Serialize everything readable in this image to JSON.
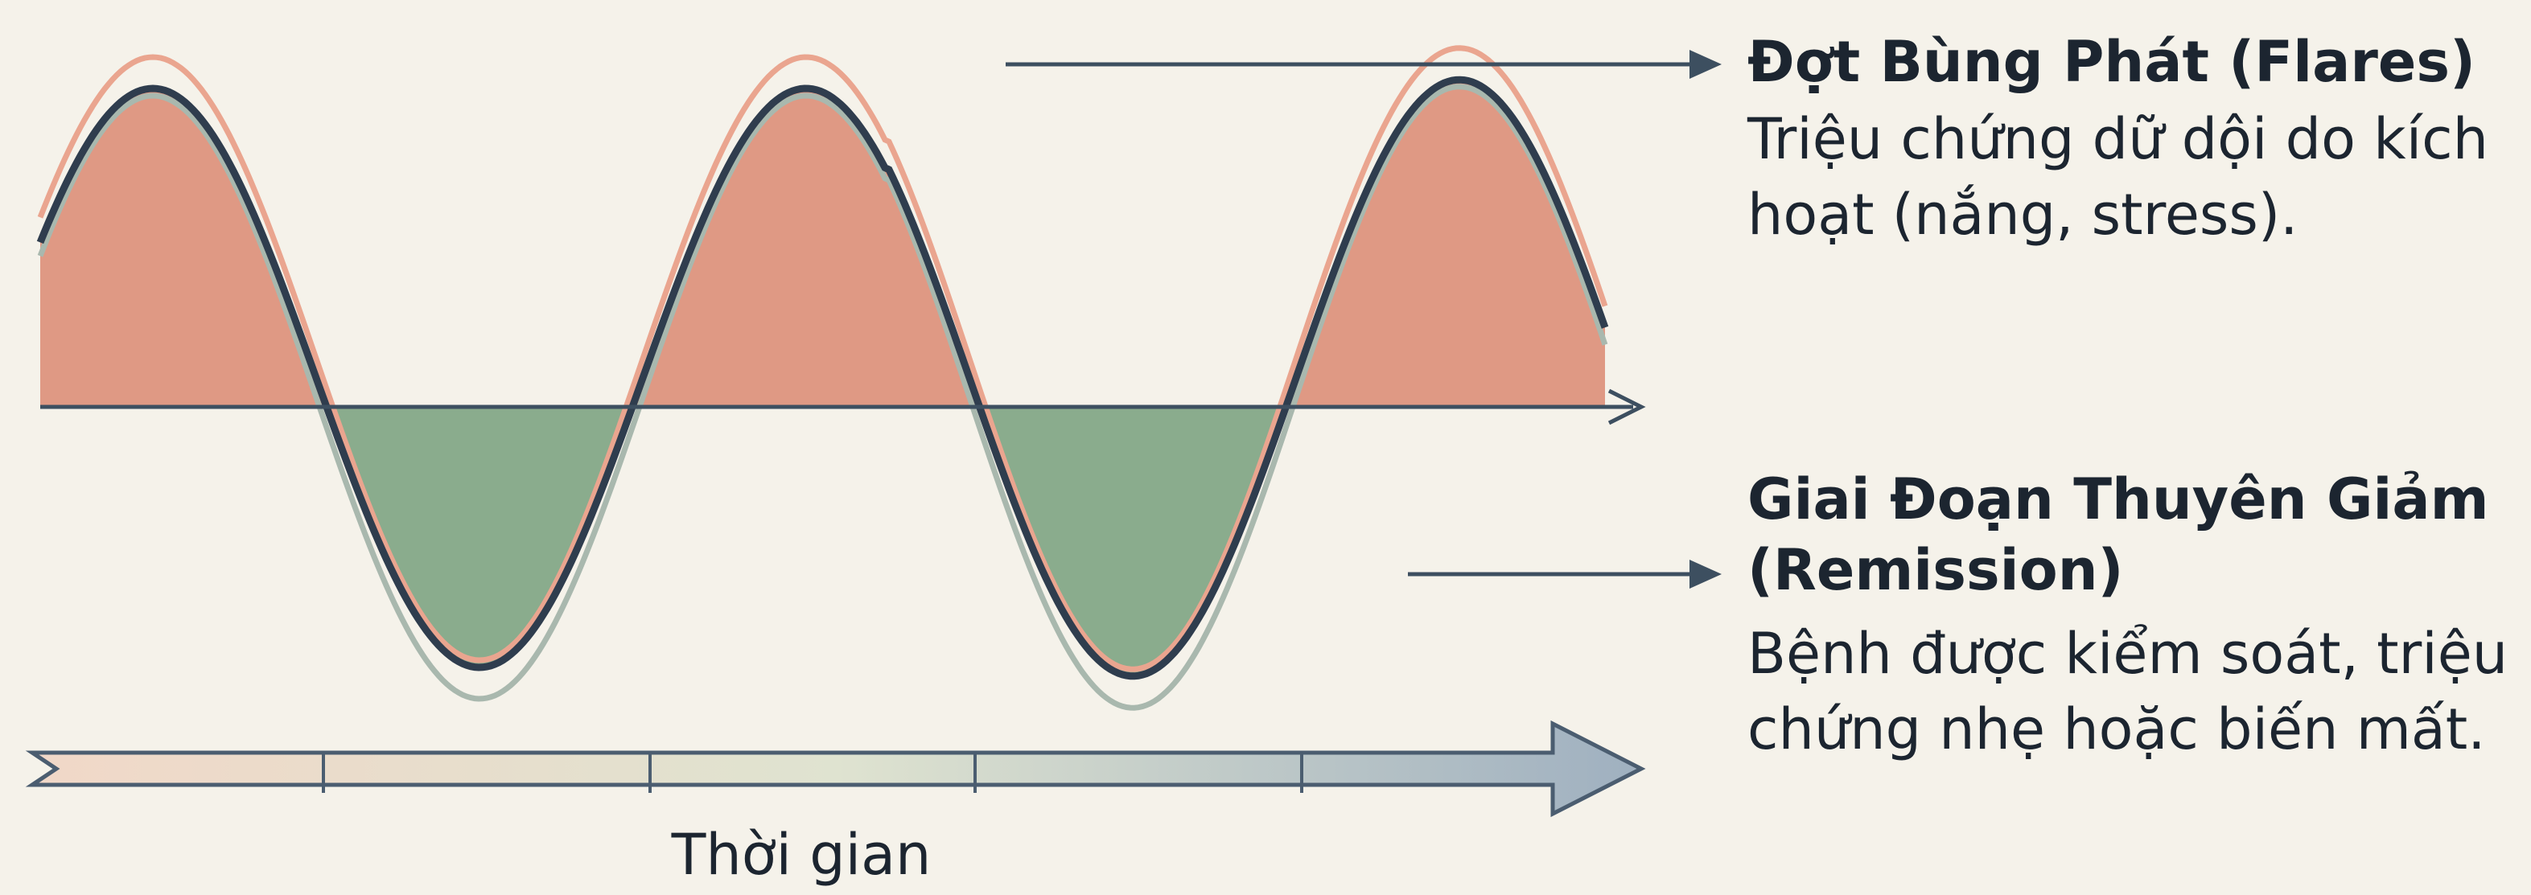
{
  "flare": {
    "title": "Đợt Bùng Phát (Flares)",
    "description": [
      "Triệu chứng dữ dội do kích",
      "hoạt (nắng, stress)."
    ]
  },
  "remission": {
    "title": [
      "Giai Đoạn Thuyên Giảm",
      "(Remission)"
    ],
    "description": [
      "Bệnh được kiểm soát, triệu",
      "chứng nhẹ hoặc biến mất."
    ]
  },
  "time_axis": {
    "label": "Thời gian"
  }
}
